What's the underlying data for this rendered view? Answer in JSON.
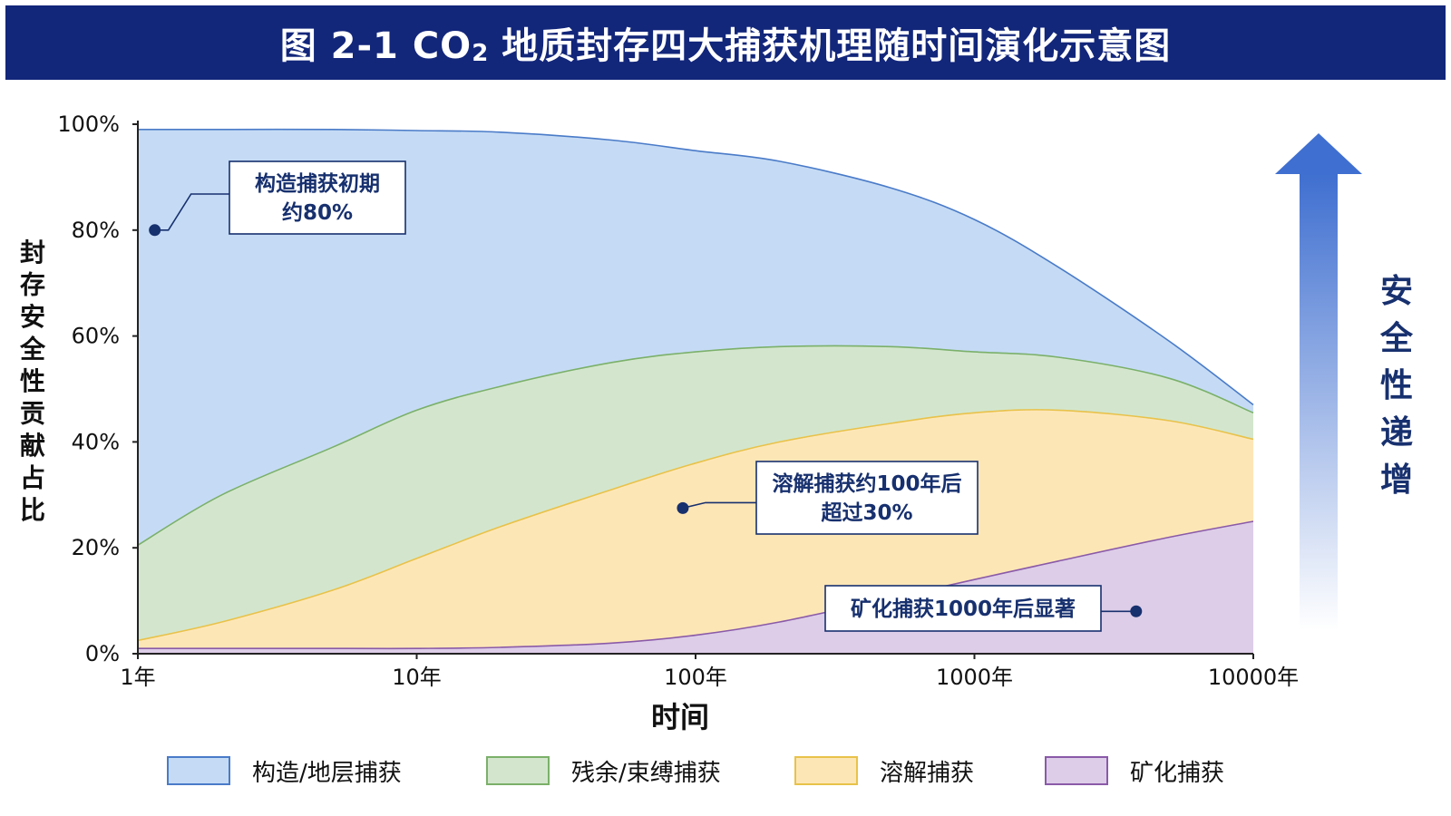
{
  "header": {
    "title_prefix": "图 2-1  CO",
    "title_subscript": "2",
    "title_suffix": "地质封存四大捕获机理随时间演化示意图"
  },
  "colors": {
    "banner": "#12267a",
    "structural": "#c5dbf5",
    "structural_line": "#4a7bc8",
    "residual": "#d3e6cd",
    "residual_line": "#7bb06a",
    "solubility": "#fde6b6",
    "solubility_line": "#e8c24a",
    "mineral": "#ddcde8",
    "mineral_line": "#8a5aa8",
    "annotation": "#17306e",
    "arrow": "#3f6fd0"
  },
  "chart_data": {
    "type": "area",
    "stacked": true,
    "x_scale": "log",
    "xlim": [
      1,
      10000
    ],
    "ylim": [
      0,
      100
    ],
    "xlabel": "时间",
    "ylabel": "封存安全性贡献占比",
    "x_ticks": [
      {
        "value": 1,
        "label": "1年"
      },
      {
        "value": 10,
        "label": "10年"
      },
      {
        "value": 100,
        "label": "100年"
      },
      {
        "value": 1000,
        "label": "1000年"
      },
      {
        "value": 10000,
        "label": "10000年"
      }
    ],
    "y_ticks": [
      {
        "value": 0,
        "label": "0%"
      },
      {
        "value": 20,
        "label": "20%"
      },
      {
        "value": 40,
        "label": "40%"
      },
      {
        "value": 60,
        "label": "60%"
      },
      {
        "value": 80,
        "label": "80%"
      },
      {
        "value": 100,
        "label": "100%"
      }
    ],
    "x": [
      1,
      2,
      5,
      10,
      20,
      50,
      100,
      200,
      500,
      1000,
      2000,
      5000,
      10000
    ],
    "series": [
      {
        "name": "构造/地层捕获",
        "color_key": "structural",
        "cumulative_top": [
          99,
          99,
          99,
          98.8,
          98.5,
          97,
          95,
          93,
          88,
          82,
          73,
          59,
          47
        ]
      },
      {
        "name": "残余/束缚捕获",
        "color_key": "residual",
        "cumulative_top": [
          20.5,
          30,
          39,
          46,
          50.5,
          55,
          57,
          58,
          58,
          57,
          56,
          52,
          45.5
        ]
      },
      {
        "name": "溶解捕获",
        "color_key": "solubility",
        "cumulative_top": [
          2.5,
          6,
          12,
          18,
          24,
          31,
          36,
          40,
          43.5,
          45.5,
          46,
          44,
          40.5
        ]
      },
      {
        "name": "矿化捕获",
        "color_key": "mineral",
        "cumulative_top": [
          1,
          1,
          1,
          1,
          1.2,
          2,
          3.5,
          6,
          10.5,
          14,
          17.5,
          22,
          25
        ]
      }
    ],
    "annotations": [
      {
        "id": "structural",
        "lines": [
          "构造捕获初期",
          "约80%"
        ],
        "point": {
          "x": 1.15,
          "y": 80
        }
      },
      {
        "id": "solubility",
        "lines": [
          "溶解捕获约100年后",
          "超过30%"
        ],
        "point": {
          "x": 90,
          "y": 27.5
        }
      },
      {
        "id": "mineral",
        "lines": [
          "矿化捕获1000年后显著"
        ],
        "point": {
          "x": 3800,
          "y": 8
        }
      }
    ],
    "side_arrow_text": "安全性递增",
    "legend_placement": "bottom"
  }
}
